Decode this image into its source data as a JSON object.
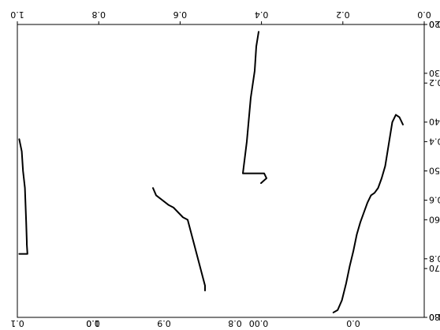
{
  "figure": {
    "render_note": "Figure appears rotated 180 degrees in the screenshot; recreated as displayed."
  },
  "chart_data": {
    "type": "line",
    "title": "",
    "frame": {
      "bottom_ticks": [
        "0.0",
        "0.2",
        "0.4",
        "0.6",
        "0.8",
        "1.0"
      ],
      "left_ticks": [
        "0.0",
        "0.2",
        "0.4",
        "0.6",
        "0.8",
        "1.0"
      ]
    },
    "axes": [
      {
        "id": "sub1",
        "ylim": [
          20,
          80
        ],
        "y_ticks": [
          20,
          30,
          40,
          50,
          60,
          70,
          80
        ],
        "xlim": [
          -1.0,
          1.0
        ],
        "x_ticks": [
          "0.0"
        ],
        "series": [
          {
            "name": "",
            "x": [
              0.28,
              0.22,
              0.16,
              0.1,
              0.05,
              0.0,
              -0.05,
              -0.1,
              -0.15,
              -0.2,
              -0.25,
              -0.3,
              -0.35,
              -0.4,
              -0.45,
              -0.5,
              -0.55,
              -0.6,
              -0.65,
              -0.7
            ],
            "y": [
              79.0,
              78.5,
              76.5,
              73.0,
              69.5,
              66.5,
              63.0,
              60.5,
              58.5,
              56.5,
              55.0,
              54.5,
              53.5,
              51.5,
              49.0,
              44.5,
              40.0,
              38.5,
              39.0,
              40.5
            ]
          }
        ]
      },
      {
        "id": "sub2",
        "ylim": [
          20,
          80
        ],
        "xlim": [
          -0.03,
          0.03
        ],
        "x_ticks": [
          "0.00"
        ],
        "series": [
          {
            "name": "",
            "x": [
              0.0,
              0.003,
              0.005,
              0.01,
              0.015,
              0.02,
              -0.007,
              -0.01,
              -0.003
            ],
            "y": [
              21.5,
              24.5,
              29.5,
              35.0,
              44.0,
              50.5,
              50.5,
              51.5,
              52.5
            ]
          }
        ]
      },
      {
        "id": "sub3",
        "ylim": [
          20,
          80
        ],
        "xlim": [
          0.55,
          1.0
        ],
        "x_ticks": [
          "0.8",
          "0.9",
          "1.0"
        ],
        "series": [
          {
            "name": "",
            "x": [
              0.645,
              0.645,
              0.7,
              0.715,
              0.745,
              0.76,
              0.8,
              0.81
            ],
            "y": [
              74.5,
              73.5,
              60.0,
              59.5,
              57.5,
              57.0,
              55.0,
              53.5
            ]
          }
        ]
      },
      {
        "id": "sub4",
        "ylim": [
          20,
          80
        ],
        "xlim": [
          0.4,
          1.0
        ],
        "x_ticks": [
          "0.0",
          "0.1"
        ],
        "series": [
          {
            "name": "",
            "x": [
              0.985,
              0.92,
              0.925,
              0.925,
              0.93,
              0.94,
              0.955,
              0.965,
              0.985
            ],
            "y": [
              67.0,
              67.0,
              65.0,
              64.5,
              60.5,
              53.5,
              50.0,
              46.0,
              43.5
            ]
          }
        ]
      }
    ]
  }
}
